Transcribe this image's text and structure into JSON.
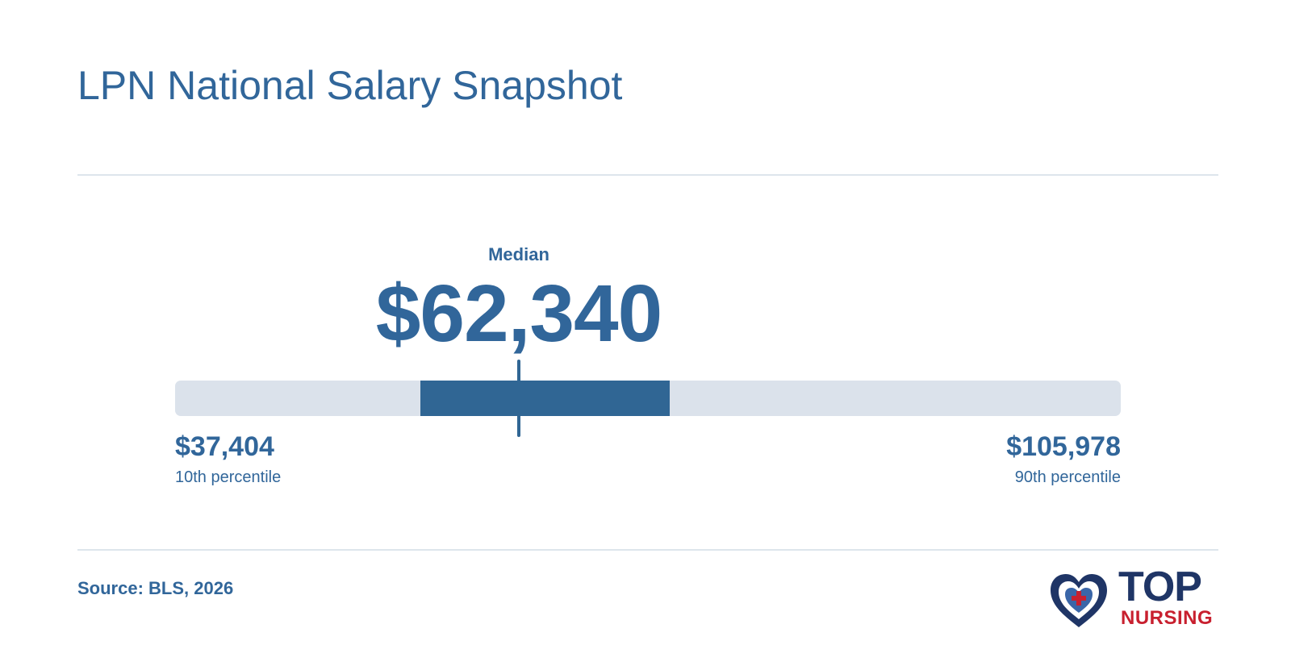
{
  "chart_data": {
    "type": "range-bar",
    "title": "LPN National Salary Snapshot",
    "currency": "USD",
    "scale_min": 37404,
    "scale_max": 105978,
    "p10": {
      "value": 37404,
      "label": "$37,404",
      "caption": "10th percentile"
    },
    "median": {
      "value": 62340,
      "label": "$62,340",
      "caption": "Median"
    },
    "p90": {
      "value": 105978,
      "label": "$105,978",
      "caption": "90th percentile"
    },
    "iqr_band": {
      "low": 55200,
      "high": 73300
    },
    "source": "Source: BLS, 2026"
  },
  "logo": {
    "top": "TOP",
    "nursing": "NURSING",
    "heart_icon": "heart-cross-icon"
  },
  "colors": {
    "primary": "#31669a",
    "bar_track": "#dbe2eb",
    "bar_fill": "#306694",
    "divider": "#dde5ec",
    "logo_navy": "#1f3566",
    "logo_red": "#c8202f"
  }
}
